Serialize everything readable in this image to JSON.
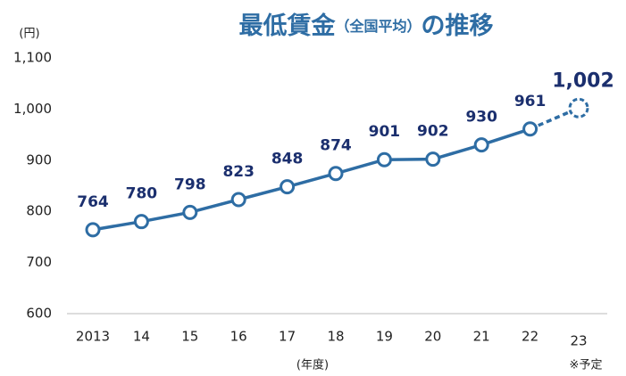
{
  "chart_data": {
    "type": "line",
    "title": [
      "最低賃金",
      "（全国平均）",
      "の推移"
    ],
    "y_unit_label": "(円)",
    "x_axis_label": "(年度)",
    "annotation": "※予定",
    "categories": [
      "2013",
      "14",
      "15",
      "16",
      "17",
      "18",
      "19",
      "20",
      "21",
      "22",
      "23"
    ],
    "values": [
      764,
      780,
      798,
      823,
      848,
      874,
      901,
      902,
      930,
      961,
      1002
    ],
    "value_labels": [
      "764",
      "780",
      "798",
      "823",
      "848",
      "874",
      "901",
      "902",
      "930",
      "961",
      "1,002"
    ],
    "color": "#2e6da4",
    "label_color": "#1b2f6e",
    "title_color": "#2e6da4",
    "projected_last": true,
    "ylim": [
      600,
      1100
    ],
    "yticks": [
      600,
      700,
      800,
      900,
      {
        "value": 1000,
        "label": "1,000"
      },
      {
        "value": 1100,
        "label": "1,100"
      }
    ],
    "grid": false
  }
}
